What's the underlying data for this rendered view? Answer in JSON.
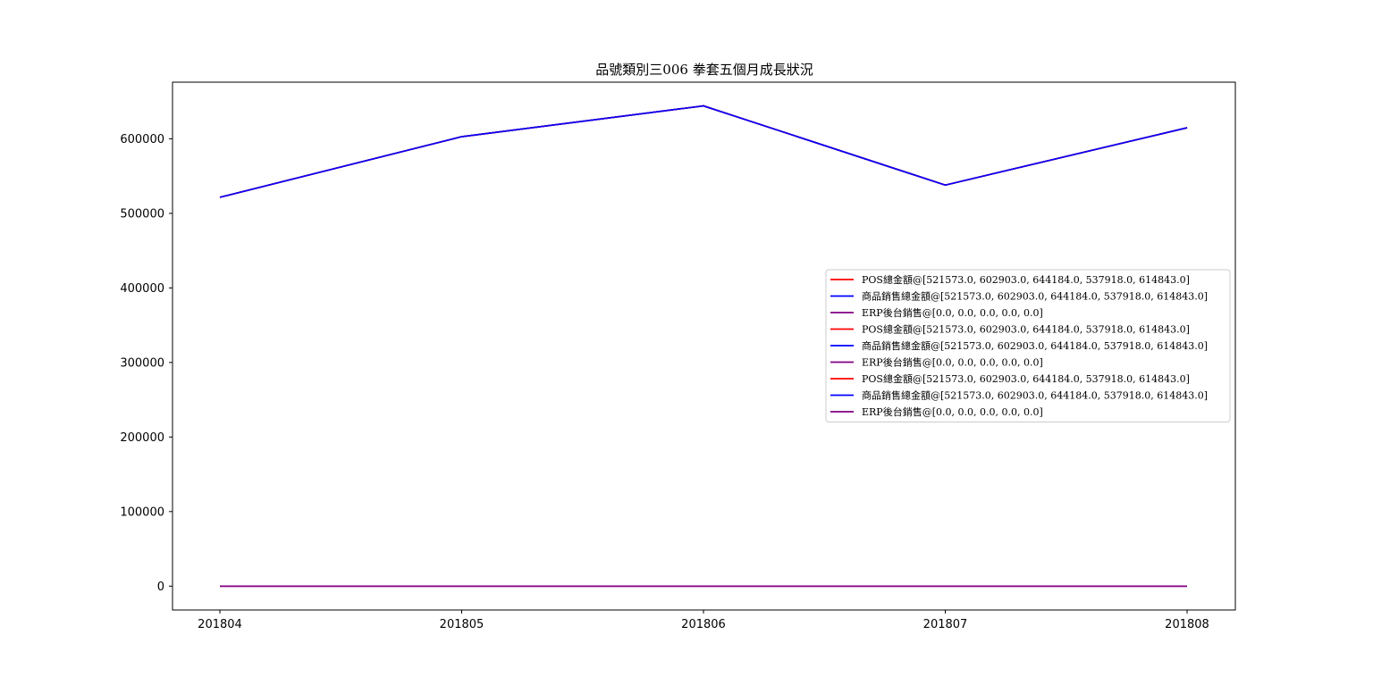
{
  "chart_data": {
    "type": "line",
    "title": "品號類別三006     拳套五個月成長狀況",
    "xlabel": "",
    "ylabel": "",
    "categories": [
      "201804",
      "201805",
      "201806",
      "201807",
      "201808"
    ],
    "ylim": [
      -32000,
      676000
    ],
    "yticks": [
      0,
      100000,
      200000,
      300000,
      400000,
      500000,
      600000
    ],
    "grid": false,
    "legend_position": "center-right",
    "series": [
      {
        "name": "POS總金額@[521573.0, 602903.0, 644184.0, 537918.0, 614843.0]",
        "color": "#ff0000",
        "values": [
          521573,
          602903,
          644184,
          537918,
          614843
        ]
      },
      {
        "name": "商品銷售總金額@[521573.0, 602903.0, 644184.0, 537918.0, 614843.0]",
        "color": "#0000ff",
        "values": [
          521573,
          602903,
          644184,
          537918,
          614843
        ]
      },
      {
        "name": "ERP後台銷售@[0.0, 0.0, 0.0, 0.0, 0.0]",
        "color": "#800080",
        "values": [
          0,
          0,
          0,
          0,
          0
        ]
      },
      {
        "name": "POS總金額@[521573.0, 602903.0, 644184.0, 537918.0, 614843.0]",
        "color": "#ff0000",
        "values": [
          521573,
          602903,
          644184,
          537918,
          614843
        ]
      },
      {
        "name": "商品銷售總金額@[521573.0, 602903.0, 644184.0, 537918.0, 614843.0]",
        "color": "#0000ff",
        "values": [
          521573,
          602903,
          644184,
          537918,
          614843
        ]
      },
      {
        "name": "ERP後台銷售@[0.0, 0.0, 0.0, 0.0, 0.0]",
        "color": "#800080",
        "values": [
          0,
          0,
          0,
          0,
          0
        ]
      },
      {
        "name": "POS總金額@[521573.0, 602903.0, 644184.0, 537918.0, 614843.0]",
        "color": "#ff0000",
        "values": [
          521573,
          602903,
          644184,
          537918,
          614843
        ]
      },
      {
        "name": "商品銷售總金額@[521573.0, 602903.0, 644184.0, 537918.0, 614843.0]",
        "color": "#0000ff",
        "values": [
          521573,
          602903,
          644184,
          537918,
          614843
        ]
      },
      {
        "name": "ERP後台銷售@[0.0, 0.0, 0.0, 0.0, 0.0]",
        "color": "#800080",
        "values": [
          0,
          0,
          0,
          0,
          0
        ]
      }
    ]
  }
}
